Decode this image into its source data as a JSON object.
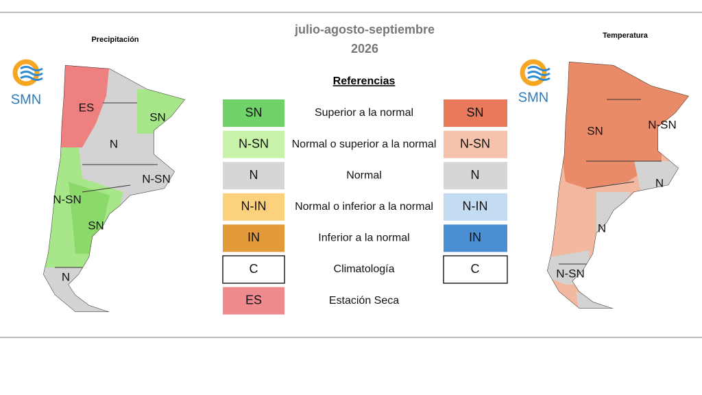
{
  "title": [
    "julio-agosto-septiembre",
    "2026"
  ],
  "maps": [
    {
      "title": "Precipitación",
      "logo": "SMN",
      "labels": [
        "ES",
        "SN",
        "N",
        "N-SN",
        "N-SN",
        "SN",
        "N"
      ]
    },
    {
      "title": "Temperatura",
      "logo": "SMN",
      "labels": [
        "SN",
        "N-SN",
        "N",
        "N",
        "N-SN"
      ]
    }
  ],
  "legend": {
    "title": "Referencias",
    "rows": [
      {
        "precip": "SN",
        "description": "Superior a la normal",
        "temp": "SN"
      },
      {
        "precip": "N-SN",
        "description": "Normal o superior a la normal",
        "temp": "N-SN"
      },
      {
        "precip": "N",
        "description": "Normal",
        "temp": "N"
      },
      {
        "precip": "N-IN",
        "description": "Normal o inferior a la normal",
        "temp": "N-IN"
      },
      {
        "precip": "IN",
        "description": "Inferior a la normal",
        "temp": "IN"
      },
      {
        "precip": "C",
        "description": "Climatología",
        "temp": "C"
      },
      {
        "precip": "ES",
        "description": "Estación Seca"
      }
    ]
  }
}
